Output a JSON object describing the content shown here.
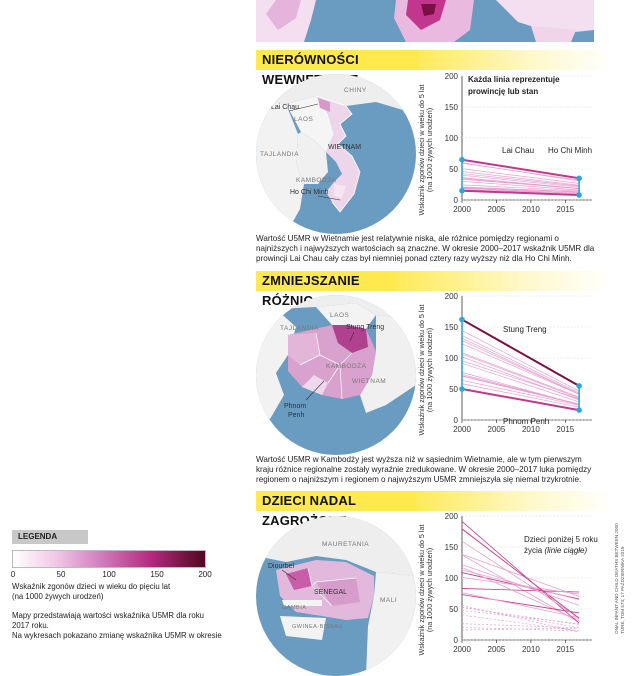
{
  "top_map": {
    "label": "..."
  },
  "sections": [
    {
      "title": "NIERÓWNOŚCI WEWNĘTRZNE",
      "map_labels": [
        "CHINY",
        "Lai Chau",
        "LAOS",
        "TAJLANDIA",
        "WIETNAM",
        "KAMBODŻA",
        "Ho Chi Minh"
      ],
      "chart_note": "Każda linia reprezentuje prowincję lub stan",
      "line_labels": [
        "Lai Chau",
        "Ho Chi Minh"
      ],
      "caption": "Wartość U5MR w Wietnamie jest relatywnie niska, ale różnice pomiędzy regionami o najniższych i najwyższych wartościach są znaczne. W okresie 2000–2017 wskaźnik U5MR dla prowincji Lai Chau cały czas był niemniej ponad cztery razy wyższy niż dla Ho Chi Minh."
    },
    {
      "title": "ZMNIEJSZANIE RÓŻNIC",
      "map_labels": [
        "LAOS",
        "TAJLANDIA",
        "Stung Treng",
        "KAMBODŻA",
        "WIETNAM",
        "Phnom Penh"
      ],
      "line_labels": [
        "Stung Treng",
        "Phnom Penh"
      ],
      "caption": "Wartość U5MR w Kambodży jest wyższa niż w sąsiednim Wietnamie, ale w tym pierwszym kraju różnice regionalne zostały wyraźnie zredukowane. W okresie 2000–2017 luka pomiędzy regionem o najniższym i regionem o najwyższym U5MR zmniejszyła się niemal trzykrotnie."
    },
    {
      "title": "DZIECI NADAL ZAGROŻONE",
      "map_labels": [
        "MAURETANIA",
        "Diourbel",
        "SENEGAL",
        "MALI",
        "GAMBIA",
        "GWINEA-BISSAU"
      ],
      "chart_note_line1": "Dzieci poniżej 5 roku",
      "chart_note_line2": "życia",
      "chart_note_italic": "(linie ciągłe)"
    }
  ],
  "y_axis_label_line1": "Wskaźnik zgonów dzieci w wieku do 5 lat",
  "y_axis_label_line2": "(na 1000 żywych urodzeń)",
  "x_ticks": [
    "2000",
    "2005",
    "2010",
    "2015"
  ],
  "y_ticks": [
    "0",
    "50",
    "100",
    "150",
    "200"
  ],
  "legend": {
    "title": "LEGENDA",
    "ticks": [
      "0",
      "50",
      "100",
      "150",
      "200"
    ],
    "desc_line1": "Wskaźnik zgonów dzieci w wieku do pięciu lat",
    "desc_line2": "(na 1000 żywych urodzeń)",
    "note1_line1": "Mapy przedstawiają wartości wskaźnika U5MR dla roku",
    "note1_line2": "2017 roku.",
    "note2": "Na wykresach pokazano zmianę wskaźnika U5MR w okresie"
  },
  "side_credit_line1": "ONAL INFANT AND CHILD DEATHS BETWEEN 2000",
  "side_credit_line2": "TURE, TOM 574; 17 PAŹDZIERNIKA 2019",
  "colors": {
    "header_yellow": "#ffe94d",
    "ocean": "#6a9bc0",
    "highlight_pink": "#c2378d",
    "dark_line": "#7a0f45",
    "marker_blue": "#2aa7dc"
  },
  "chart_data": [
    {
      "type": "line",
      "title": "",
      "xlabel": "",
      "ylabel": "Wskaźnik zgonów dzieci w wieku do 5 lat (na 1000 żywych urodzeń)",
      "xlim": [
        2000,
        2017
      ],
      "ylim": [
        0,
        200
      ],
      "x": [
        2000,
        2017
      ],
      "series": [
        {
          "name": "Lai Chau",
          "values": [
            65,
            35
          ]
        },
        {
          "name": "Ho Chi Minh",
          "values": [
            15,
            8
          ]
        }
      ]
    },
    {
      "type": "line",
      "title": "",
      "xlabel": "",
      "ylabel": "Wskaźnik zgonów dzieci w wieku do 5 lat (na 1000 żywych urodzeń)",
      "xlim": [
        2000,
        2017
      ],
      "ylim": [
        0,
        200
      ],
      "x": [
        2000,
        2017
      ],
      "series": [
        {
          "name": "Stung Treng",
          "values": [
            162,
            55
          ]
        },
        {
          "name": "Phnom Penh",
          "values": [
            50,
            16
          ]
        }
      ]
    },
    {
      "type": "line",
      "title": "",
      "xlabel": "",
      "ylabel": "Wskaźnik zgonów dzieci w wieku do 5 lat (na 1000 żywych urodzeń)",
      "xlim": [
        2000,
        2017
      ],
      "ylim": [
        0,
        200
      ],
      "x": [
        2000,
        2017
      ],
      "series": []
    }
  ]
}
